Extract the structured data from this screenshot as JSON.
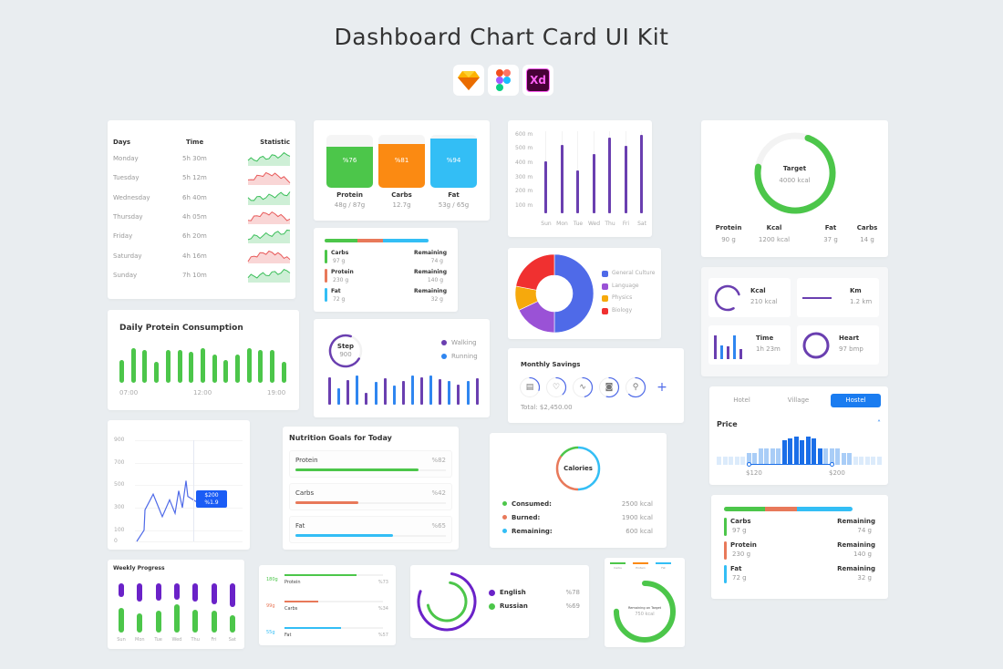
{
  "title": "Dashboard Chart Card UI Kit",
  "tools": [
    {
      "name": "sketch-icon"
    },
    {
      "name": "figma-icon"
    },
    {
      "name": "xd-icon",
      "label": "Xd"
    }
  ],
  "colors": {
    "green": "#4cc64a",
    "orange": "#fb8a12",
    "blue": "#33bef5",
    "coral": "#e8795a",
    "purple": "#6a3fb0",
    "royal": "#4f6ae8",
    "red": "#f03030",
    "yellow": "#f6a90c",
    "violet": "#9a52d6",
    "accent": "#1a7cf0"
  },
  "days_table": {
    "headers": [
      "Days",
      "Time",
      "Statistic"
    ],
    "rows": [
      {
        "day": "Monday",
        "time": "5h 30m",
        "trend": "up"
      },
      {
        "day": "Tuesday",
        "time": "5h 12m",
        "trend": "down"
      },
      {
        "day": "Wednesday",
        "time": "6h 40m",
        "trend": "up"
      },
      {
        "day": "Thursday",
        "time": "4h 05m",
        "trend": "down"
      },
      {
        "day": "Friday",
        "time": "6h 20m",
        "trend": "up"
      },
      {
        "day": "Saturday",
        "time": "4h 16m",
        "trend": "down"
      },
      {
        "day": "Sunday",
        "time": "7h 10m",
        "trend": "up"
      }
    ]
  },
  "macro_tiles": [
    {
      "label": "Protein",
      "pct": "%76",
      "value": 76,
      "sub": "48g / 87g",
      "color": "#4cc64a"
    },
    {
      "label": "Carbs",
      "pct": "%81",
      "value": 81,
      "sub": "12.7g",
      "color": "#fb8a12"
    },
    {
      "label": "Fat",
      "pct": "%94",
      "value": 94,
      "sub": "53g / 65g",
      "color": "#33bef5"
    }
  ],
  "remaining_card": {
    "segments": [
      {
        "color": "#4cc64a",
        "value": 27
      },
      {
        "color": "#e8795a",
        "value": 21
      },
      {
        "color": "#33bef5",
        "value": 37
      }
    ],
    "rows": [
      {
        "label": "Carbs",
        "value": "97 g",
        "right_label": "Remaining",
        "right_value": "74 g",
        "color": "#4cc64a"
      },
      {
        "label": "Protein",
        "value": "230 g",
        "right_label": "Remaining",
        "right_value": "140 g",
        "color": "#e8795a"
      },
      {
        "label": "Fat",
        "value": "72 g",
        "right_label": "Remaining",
        "right_value": "32 g",
        "color": "#33bef5"
      }
    ]
  },
  "chart_data": [
    {
      "type": "bar",
      "id": "distance",
      "categories": [
        "Sun",
        "Mon",
        "Tue",
        "Wed",
        "Thu",
        "Fri",
        "Sat"
      ],
      "values": [
        410,
        530,
        350,
        465,
        580,
        520,
        600
      ],
      "yticks": [
        "100 m",
        "200 m",
        "300 m",
        "400 m",
        "500 m",
        "600 m"
      ],
      "ylim": [
        50,
        610
      ]
    },
    {
      "type": "pie",
      "id": "subjects",
      "labels": [
        "General Culture",
        "Language",
        "Physics",
        "Biology"
      ],
      "values": [
        50,
        18,
        10,
        22
      ],
      "colors": [
        "#4f6ae8",
        "#9a52d6",
        "#f6a90c",
        "#f03030"
      ]
    },
    {
      "type": "bar",
      "id": "daily-protein",
      "title": "Daily Protein Consumption",
      "xticks": [
        "07:00",
        "12:00",
        "19:00"
      ],
      "values": [
        60,
        90,
        85,
        55,
        85,
        85,
        80,
        90,
        75,
        60,
        75,
        90,
        85,
        85,
        55
      ]
    },
    {
      "type": "bar",
      "id": "steps",
      "series": [
        {
          "name": "Walking",
          "color": "#6a3fb0"
        },
        {
          "name": "Running",
          "color": "#2f86f0"
        }
      ],
      "values": [
        95,
        55,
        85,
        100,
        42,
        78,
        90,
        65,
        82,
        100,
        95,
        100,
        88,
        82,
        70,
        80,
        90
      ]
    },
    {
      "type": "line",
      "id": "price-line",
      "yticks": [
        "0",
        "100",
        "300",
        "500",
        "700",
        "900"
      ],
      "x": [
        0,
        1,
        2,
        3,
        4,
        5,
        6,
        7,
        8,
        9,
        10,
        11,
        12
      ],
      "y": [
        0,
        100,
        280,
        420,
        300,
        220,
        370,
        250,
        450,
        300,
        540,
        400,
        350
      ],
      "ylim": [
        0,
        900
      ],
      "tooltip": {
        "value": "$200",
        "change": "%1.9"
      }
    },
    {
      "type": "bar",
      "id": "weekly-progress",
      "title": "Weekly Progress",
      "categories": [
        "Sun",
        "Mon",
        "Tue",
        "Wed",
        "Thu",
        "Fri",
        "Sat"
      ],
      "top": [
        30,
        40,
        38,
        35,
        40,
        45,
        52
      ],
      "bottom": [
        55,
        42,
        48,
        62,
        50,
        48,
        38
      ]
    },
    {
      "type": "bar",
      "id": "price-histogram",
      "values": [
        20,
        20,
        20,
        20,
        20,
        30,
        30,
        40,
        40,
        40,
        40,
        60,
        65,
        70,
        60,
        70,
        65,
        40,
        40,
        40,
        40,
        30,
        30,
        20,
        20,
        20,
        20,
        20
      ],
      "range": [
        "$120",
        "$200"
      ]
    }
  ],
  "target_card": {
    "label": "Target",
    "value": "4000 kcal",
    "progress": 72,
    "stats": [
      {
        "label": "Protein",
        "value": "90 g"
      },
      {
        "label": "Kcal",
        "value": "1200 kcal"
      },
      {
        "label": "Fat",
        "value": "37 g"
      },
      {
        "label": "Carbs",
        "value": "14 g"
      }
    ]
  },
  "step_card": {
    "label": "Step",
    "value": "900",
    "legend": [
      "Walking",
      "Running"
    ]
  },
  "activity_tiles": [
    {
      "label": "Kcal",
      "value": "210 kcal",
      "icon": "ring-progress-icon"
    },
    {
      "label": "Km",
      "value": "1.2 km",
      "icon": "line-progress-icon"
    },
    {
      "label": "Time",
      "value": "1h 23m",
      "icon": "mini-bars-icon"
    },
    {
      "label": "Heart",
      "value": "97 bmp",
      "icon": "heart-dial-icon"
    }
  ],
  "savings": {
    "title": "Monthly Savings",
    "icons": [
      "calendar-icon",
      "heart-icon",
      "activity-icon",
      "camera-icon",
      "user-icon"
    ],
    "add": "+",
    "total": "Total: $2,450.00"
  },
  "nutrition_goals": {
    "title": "Nutrition Goals for Today",
    "items": [
      {
        "label": "Protein",
        "pct": "%82",
        "value": 82,
        "color": "#4cc64a"
      },
      {
        "label": "Carbs",
        "pct": "%42",
        "value": 42,
        "color": "#e8795a"
      },
      {
        "label": "Fat",
        "pct": "%65",
        "value": 65,
        "color": "#33bef5"
      }
    ]
  },
  "calories": {
    "title": "Calories",
    "items": [
      {
        "label": "Consumed:",
        "value": "2500 kcal",
        "color": "#4cc64a"
      },
      {
        "label": "Burned:",
        "value": "1900 kcal",
        "color": "#e8795a"
      },
      {
        "label": "Remaining:",
        "value": "600 kcal",
        "color": "#33bef5"
      }
    ]
  },
  "price_filter": {
    "tabs": [
      "Hotel",
      "Village",
      "Hostel"
    ],
    "active": "Hostel",
    "title": "Price"
  },
  "progress_list": [
    {
      "grams": "180g",
      "label": "Protein",
      "pct": "%73",
      "value": 73,
      "color": "#4cc64a"
    },
    {
      "grams": "99g",
      "label": "Carbs",
      "pct": "%34",
      "value": 34,
      "color": "#e8795a"
    },
    {
      "grams": "55g",
      "label": "Fat",
      "pct": "%57",
      "value": 57,
      "color": "#33bef5"
    }
  ],
  "languages": [
    {
      "label": "English",
      "pct": "%78",
      "value": 78,
      "color": "#6a22c8"
    },
    {
      "label": "Russian",
      "pct": "%69",
      "value": 69,
      "color": "#4cc64a"
    }
  ],
  "target_remaining": {
    "labels": [
      "Carbs",
      "Protein",
      "Fat"
    ],
    "colors": [
      "#4cc64a",
      "#fb8a12",
      "#33bef5"
    ],
    "title": "Remaining on Target",
    "value": "750 kcal",
    "progress": 75
  }
}
